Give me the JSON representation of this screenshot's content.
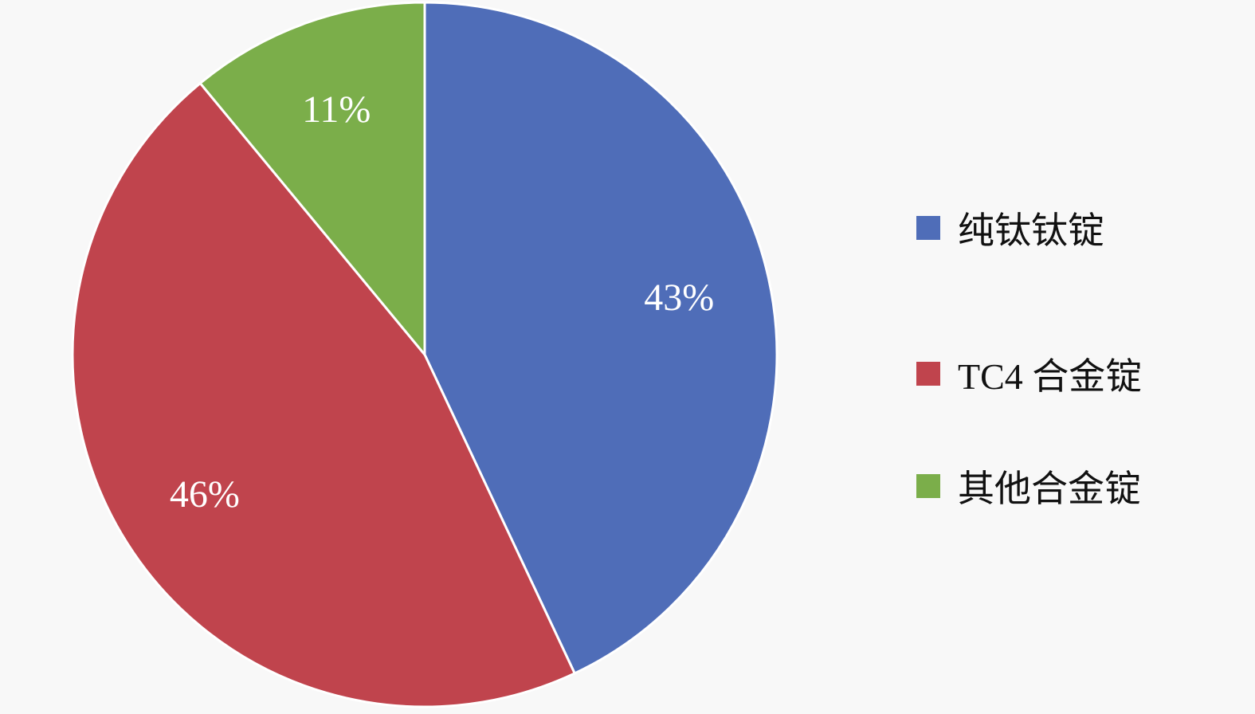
{
  "chart_data": {
    "type": "pie",
    "title": "",
    "start_angle": "top",
    "direction": "clockwise",
    "legend_position": "right",
    "slices": [
      {
        "label": "纯钛钛锭",
        "value": 43,
        "data_label": "43%",
        "color": "#4f6db8"
      },
      {
        "label": "TC4 合金锭",
        "value": 46,
        "data_label": "46%",
        "color": "#c0444d"
      },
      {
        "label": "其他合金锭",
        "value": 11,
        "data_label": "11%",
        "color": "#7bae4a"
      }
    ]
  }
}
